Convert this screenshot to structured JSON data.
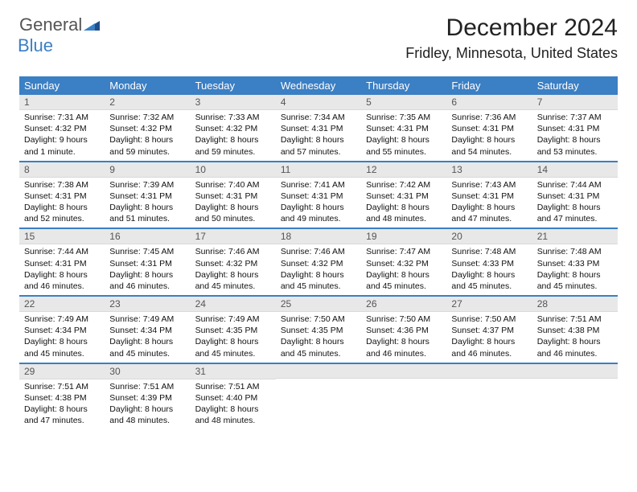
{
  "brand": {
    "word1": "General",
    "word2": "Blue"
  },
  "colors": {
    "accent": "#3b7fc4",
    "date_bar_bg": "#e8e8e8",
    "text": "#111111",
    "logo_gray": "#555555"
  },
  "title": "December 2024",
  "location": "Fridley, Minnesota, United States",
  "day_labels": [
    "Sunday",
    "Monday",
    "Tuesday",
    "Wednesday",
    "Thursday",
    "Friday",
    "Saturday"
  ],
  "weeks": [
    [
      {
        "date": "1",
        "sunrise": "Sunrise: 7:31 AM",
        "sunset": "Sunset: 4:32 PM",
        "daylight": "Daylight: 9 hours and 1 minute."
      },
      {
        "date": "2",
        "sunrise": "Sunrise: 7:32 AM",
        "sunset": "Sunset: 4:32 PM",
        "daylight": "Daylight: 8 hours and 59 minutes."
      },
      {
        "date": "3",
        "sunrise": "Sunrise: 7:33 AM",
        "sunset": "Sunset: 4:32 PM",
        "daylight": "Daylight: 8 hours and 59 minutes."
      },
      {
        "date": "4",
        "sunrise": "Sunrise: 7:34 AM",
        "sunset": "Sunset: 4:31 PM",
        "daylight": "Daylight: 8 hours and 57 minutes."
      },
      {
        "date": "5",
        "sunrise": "Sunrise: 7:35 AM",
        "sunset": "Sunset: 4:31 PM",
        "daylight": "Daylight: 8 hours and 55 minutes."
      },
      {
        "date": "6",
        "sunrise": "Sunrise: 7:36 AM",
        "sunset": "Sunset: 4:31 PM",
        "daylight": "Daylight: 8 hours and 54 minutes."
      },
      {
        "date": "7",
        "sunrise": "Sunrise: 7:37 AM",
        "sunset": "Sunset: 4:31 PM",
        "daylight": "Daylight: 8 hours and 53 minutes."
      }
    ],
    [
      {
        "date": "8",
        "sunrise": "Sunrise: 7:38 AM",
        "sunset": "Sunset: 4:31 PM",
        "daylight": "Daylight: 8 hours and 52 minutes."
      },
      {
        "date": "9",
        "sunrise": "Sunrise: 7:39 AM",
        "sunset": "Sunset: 4:31 PM",
        "daylight": "Daylight: 8 hours and 51 minutes."
      },
      {
        "date": "10",
        "sunrise": "Sunrise: 7:40 AM",
        "sunset": "Sunset: 4:31 PM",
        "daylight": "Daylight: 8 hours and 50 minutes."
      },
      {
        "date": "11",
        "sunrise": "Sunrise: 7:41 AM",
        "sunset": "Sunset: 4:31 PM",
        "daylight": "Daylight: 8 hours and 49 minutes."
      },
      {
        "date": "12",
        "sunrise": "Sunrise: 7:42 AM",
        "sunset": "Sunset: 4:31 PM",
        "daylight": "Daylight: 8 hours and 48 minutes."
      },
      {
        "date": "13",
        "sunrise": "Sunrise: 7:43 AM",
        "sunset": "Sunset: 4:31 PM",
        "daylight": "Daylight: 8 hours and 47 minutes."
      },
      {
        "date": "14",
        "sunrise": "Sunrise: 7:44 AM",
        "sunset": "Sunset: 4:31 PM",
        "daylight": "Daylight: 8 hours and 47 minutes."
      }
    ],
    [
      {
        "date": "15",
        "sunrise": "Sunrise: 7:44 AM",
        "sunset": "Sunset: 4:31 PM",
        "daylight": "Daylight: 8 hours and 46 minutes."
      },
      {
        "date": "16",
        "sunrise": "Sunrise: 7:45 AM",
        "sunset": "Sunset: 4:31 PM",
        "daylight": "Daylight: 8 hours and 46 minutes."
      },
      {
        "date": "17",
        "sunrise": "Sunrise: 7:46 AM",
        "sunset": "Sunset: 4:32 PM",
        "daylight": "Daylight: 8 hours and 45 minutes."
      },
      {
        "date": "18",
        "sunrise": "Sunrise: 7:46 AM",
        "sunset": "Sunset: 4:32 PM",
        "daylight": "Daylight: 8 hours and 45 minutes."
      },
      {
        "date": "19",
        "sunrise": "Sunrise: 7:47 AM",
        "sunset": "Sunset: 4:32 PM",
        "daylight": "Daylight: 8 hours and 45 minutes."
      },
      {
        "date": "20",
        "sunrise": "Sunrise: 7:48 AM",
        "sunset": "Sunset: 4:33 PM",
        "daylight": "Daylight: 8 hours and 45 minutes."
      },
      {
        "date": "21",
        "sunrise": "Sunrise: 7:48 AM",
        "sunset": "Sunset: 4:33 PM",
        "daylight": "Daylight: 8 hours and 45 minutes."
      }
    ],
    [
      {
        "date": "22",
        "sunrise": "Sunrise: 7:49 AM",
        "sunset": "Sunset: 4:34 PM",
        "daylight": "Daylight: 8 hours and 45 minutes."
      },
      {
        "date": "23",
        "sunrise": "Sunrise: 7:49 AM",
        "sunset": "Sunset: 4:34 PM",
        "daylight": "Daylight: 8 hours and 45 minutes."
      },
      {
        "date": "24",
        "sunrise": "Sunrise: 7:49 AM",
        "sunset": "Sunset: 4:35 PM",
        "daylight": "Daylight: 8 hours and 45 minutes."
      },
      {
        "date": "25",
        "sunrise": "Sunrise: 7:50 AM",
        "sunset": "Sunset: 4:35 PM",
        "daylight": "Daylight: 8 hours and 45 minutes."
      },
      {
        "date": "26",
        "sunrise": "Sunrise: 7:50 AM",
        "sunset": "Sunset: 4:36 PM",
        "daylight": "Daylight: 8 hours and 46 minutes."
      },
      {
        "date": "27",
        "sunrise": "Sunrise: 7:50 AM",
        "sunset": "Sunset: 4:37 PM",
        "daylight": "Daylight: 8 hours and 46 minutes."
      },
      {
        "date": "28",
        "sunrise": "Sunrise: 7:51 AM",
        "sunset": "Sunset: 4:38 PM",
        "daylight": "Daylight: 8 hours and 46 minutes."
      }
    ],
    [
      {
        "date": "29",
        "sunrise": "Sunrise: 7:51 AM",
        "sunset": "Sunset: 4:38 PM",
        "daylight": "Daylight: 8 hours and 47 minutes."
      },
      {
        "date": "30",
        "sunrise": "Sunrise: 7:51 AM",
        "sunset": "Sunset: 4:39 PM",
        "daylight": "Daylight: 8 hours and 48 minutes."
      },
      {
        "date": "31",
        "sunrise": "Sunrise: 7:51 AM",
        "sunset": "Sunset: 4:40 PM",
        "daylight": "Daylight: 8 hours and 48 minutes."
      },
      {
        "blank": true
      },
      {
        "blank": true
      },
      {
        "blank": true
      },
      {
        "blank": true
      }
    ]
  ]
}
